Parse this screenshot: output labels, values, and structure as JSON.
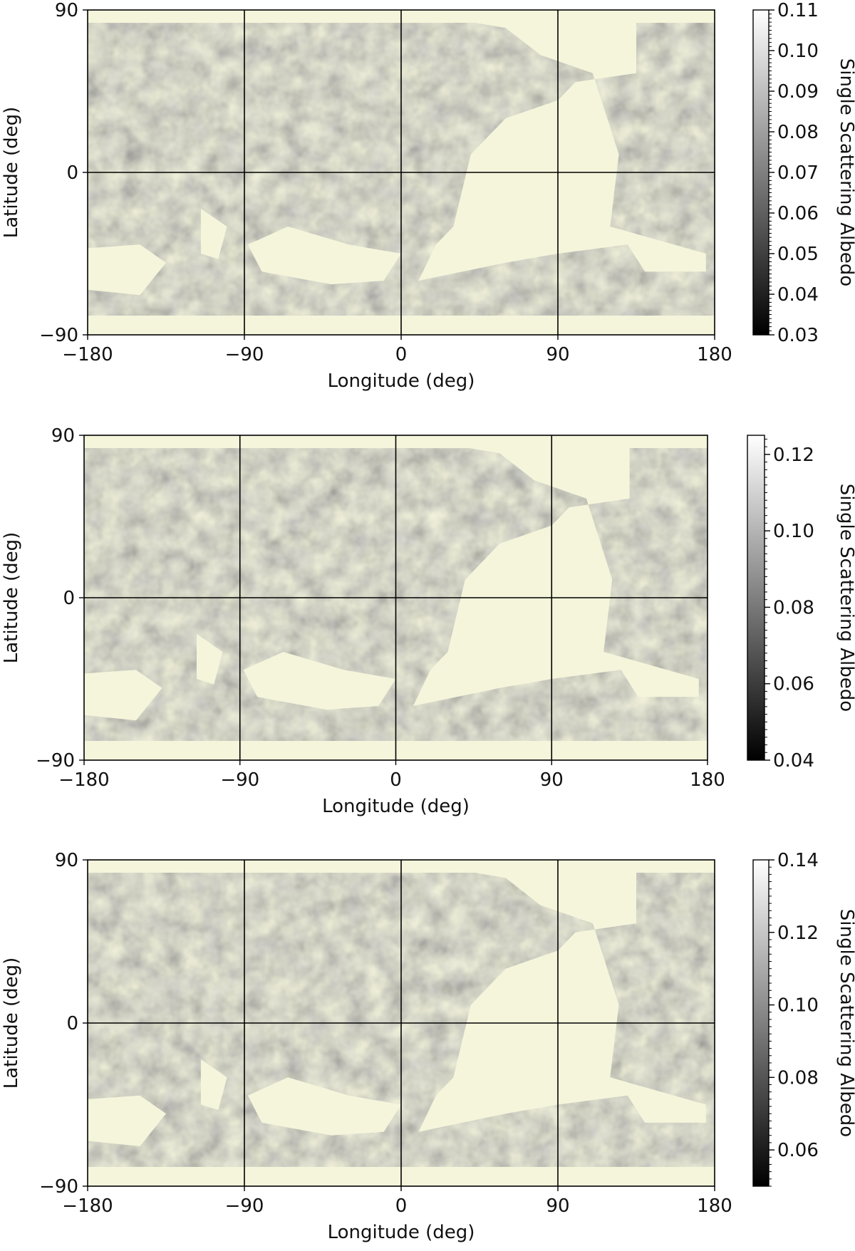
{
  "figure": {
    "colors": {
      "no_data": "#f5f5dc",
      "grid": "#000000",
      "axis": "#000000"
    },
    "colormap": "gray"
  },
  "chart_data": [
    {
      "type": "heatmap",
      "title": "",
      "xlabel": "Longitude (deg)",
      "ylabel": "Latitude (deg)",
      "xlim": [
        -180,
        180
      ],
      "ylim": [
        -90,
        90
      ],
      "xticks": [
        -180,
        -90,
        0,
        90,
        180
      ],
      "xtick_labels": [
        "−180",
        "−90",
        "0",
        "90",
        "180"
      ],
      "yticks": [
        -90,
        0,
        90
      ],
      "ytick_labels": [
        "−90",
        "0",
        "90"
      ],
      "grid": true,
      "colorbar": {
        "label": "Single Scattering Albedo",
        "range": [
          0.03,
          0.11
        ],
        "ticks": [
          0.03,
          0.04,
          0.05,
          0.06,
          0.07,
          0.08,
          0.09,
          0.1,
          0.11
        ],
        "tick_labels": [
          "0.03",
          "0.04",
          "0.05",
          "0.06",
          "0.07",
          "0.08",
          "0.09",
          "0.10",
          "0.11"
        ]
      }
    },
    {
      "type": "heatmap",
      "title": "",
      "xlabel": "Longitude (deg)",
      "ylabel": "Latitude (deg)",
      "xlim": [
        -180,
        180
      ],
      "ylim": [
        -90,
        90
      ],
      "xticks": [
        -180,
        -90,
        0,
        90,
        180
      ],
      "xtick_labels": [
        "−180",
        "−90",
        "0",
        "90",
        "180"
      ],
      "yticks": [
        -90,
        0,
        90
      ],
      "ytick_labels": [
        "−90",
        "0",
        "90"
      ],
      "grid": true,
      "colorbar": {
        "label": "Single Scattering Albedo",
        "range": [
          0.04,
          0.125
        ],
        "ticks": [
          0.04,
          0.06,
          0.08,
          0.1,
          0.12
        ],
        "tick_labels": [
          "0.04",
          "0.06",
          "0.08",
          "0.10",
          "0.12"
        ]
      }
    },
    {
      "type": "heatmap",
      "title": "",
      "xlabel": "Longitude (deg)",
      "ylabel": "Latitude (deg)",
      "xlim": [
        -180,
        180
      ],
      "ylim": [
        -90,
        90
      ],
      "xticks": [
        -180,
        -90,
        0,
        90,
        180
      ],
      "xtick_labels": [
        "−180",
        "−90",
        "0",
        "90",
        "180"
      ],
      "yticks": [
        -90,
        0,
        90
      ],
      "ytick_labels": [
        "−90",
        "0",
        "90"
      ],
      "grid": true,
      "colorbar": {
        "label": "Single Scattering Albedo",
        "range": [
          0.05,
          0.14
        ],
        "ticks": [
          0.06,
          0.08,
          0.1,
          0.12,
          0.14
        ],
        "tick_labels": [
          "0.06",
          "0.08",
          "0.10",
          "0.12",
          "0.14"
        ]
      }
    }
  ]
}
